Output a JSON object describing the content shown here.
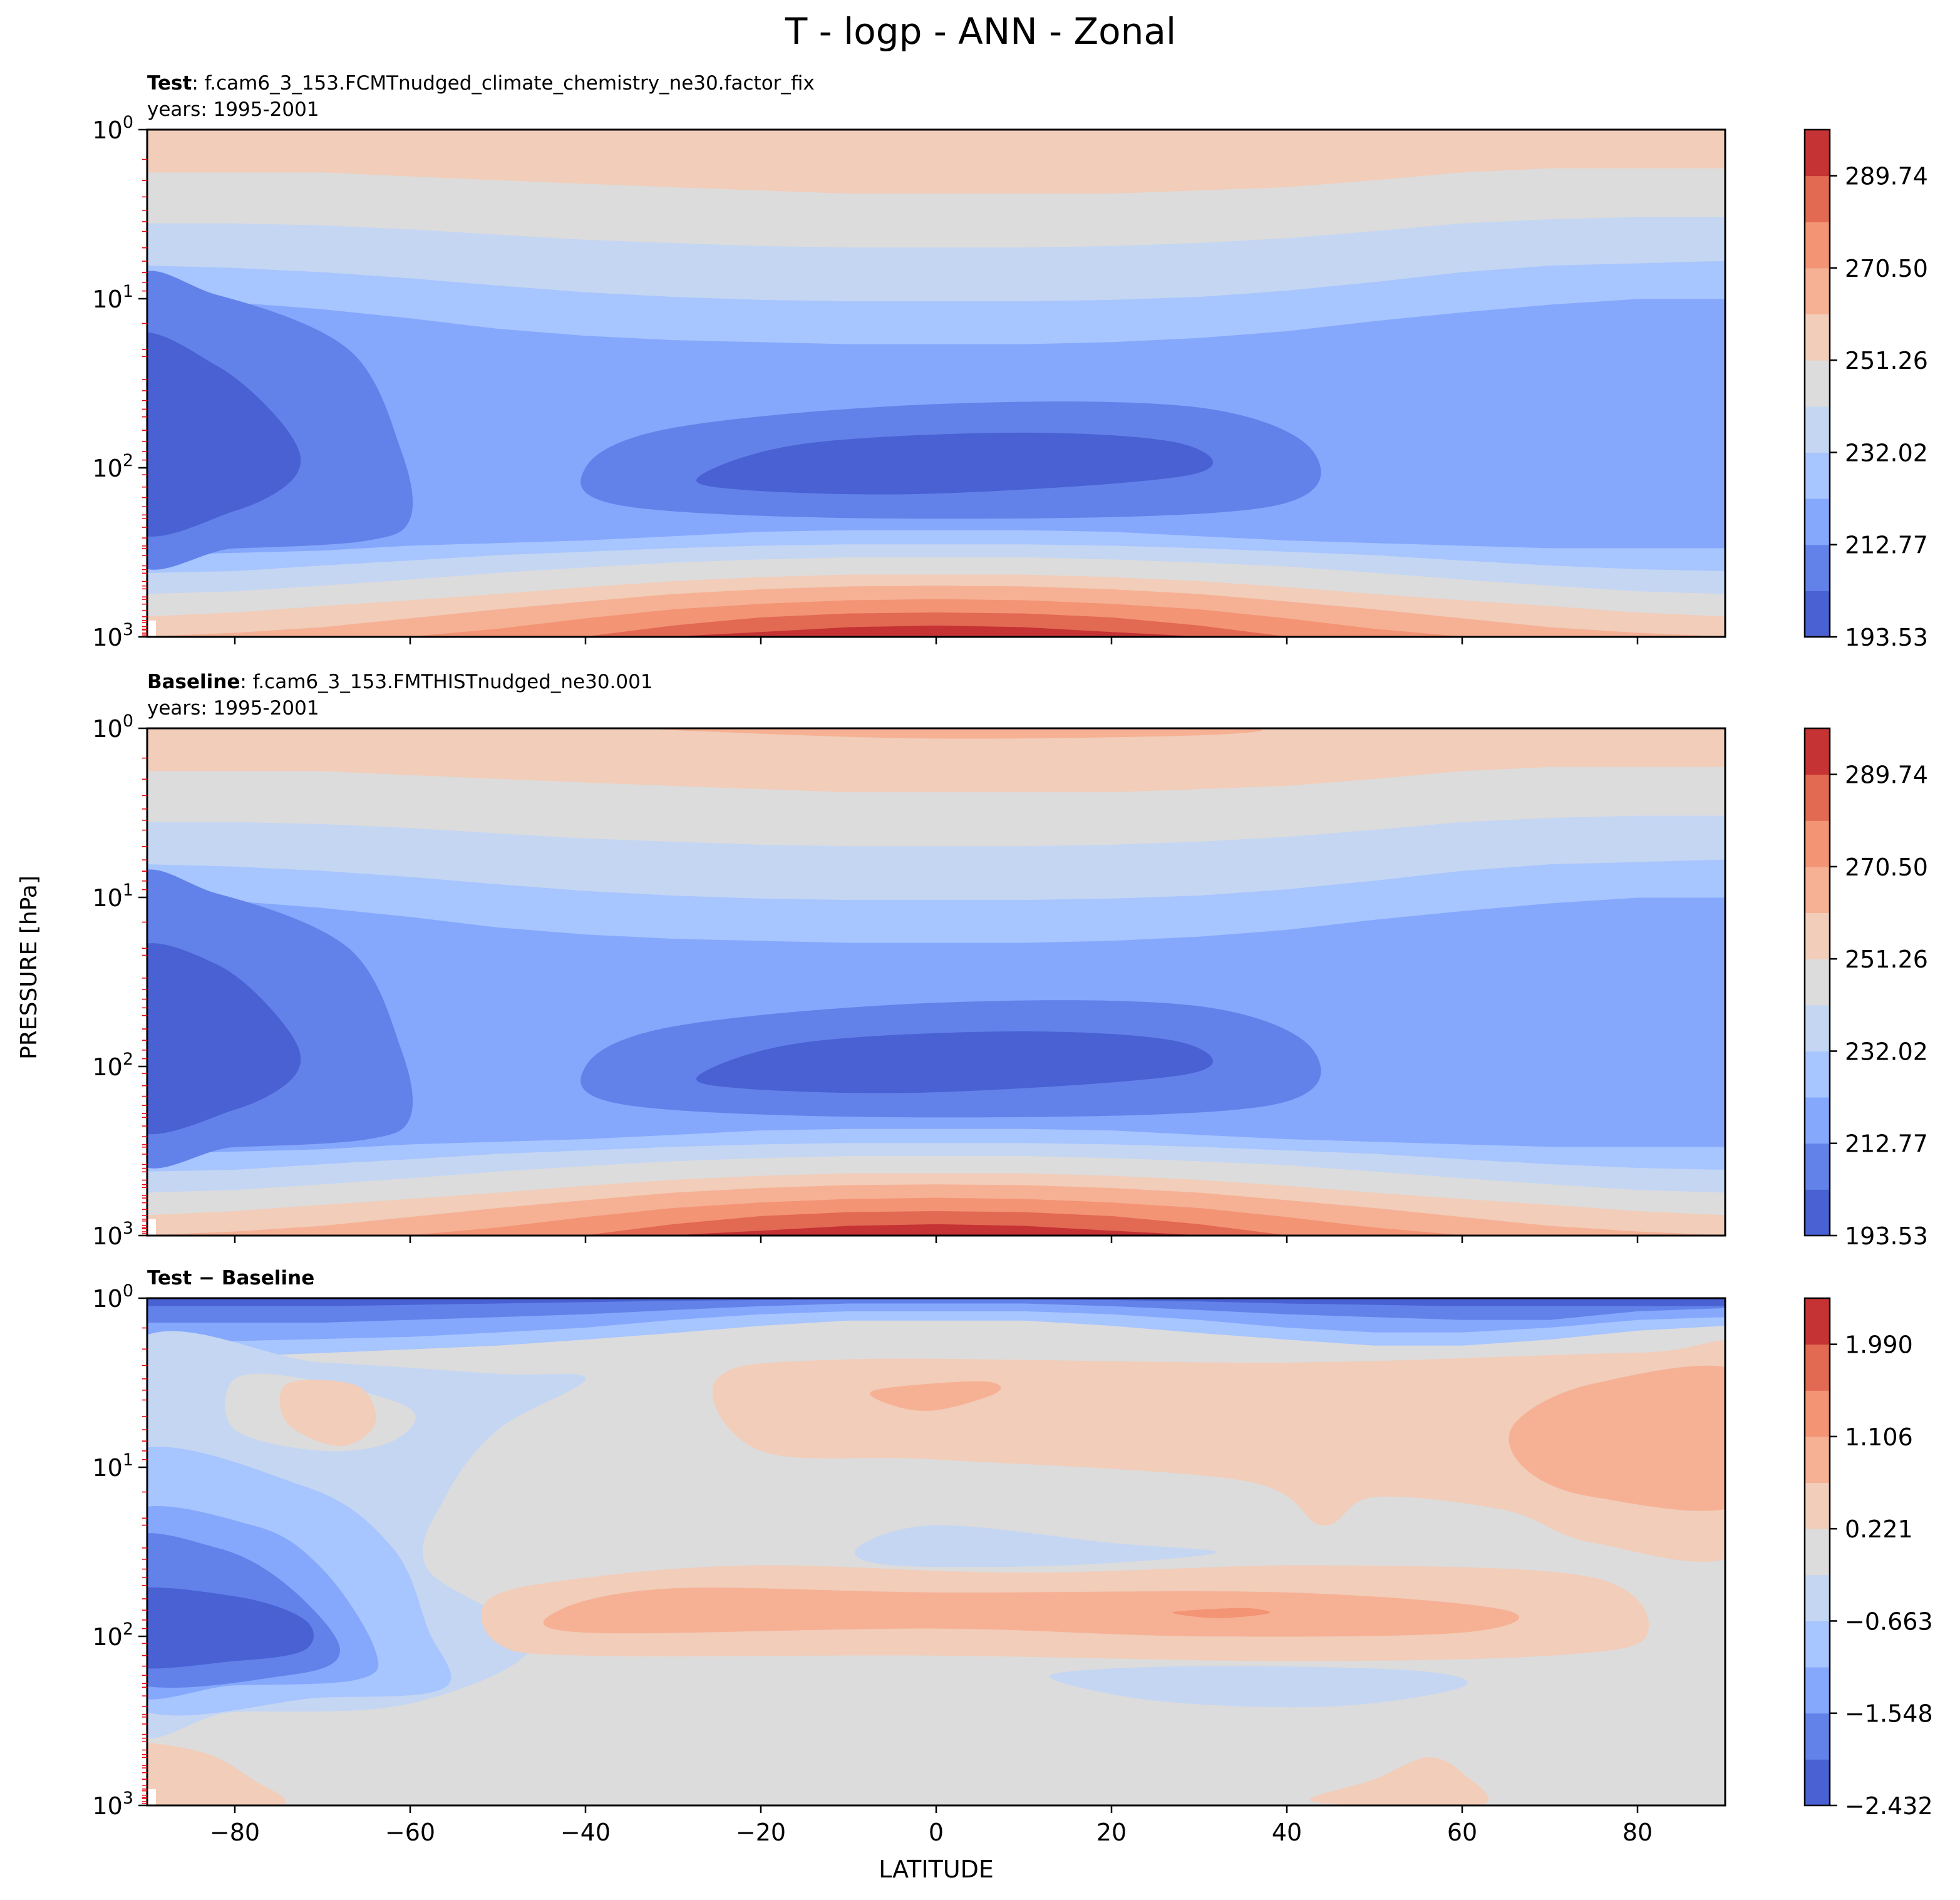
{
  "title": "T - logp - ANN - Zonal",
  "ylabel": "PRESSURE [hPa]",
  "xlabel": "LATITUDE",
  "colors": {
    "temp_levels": [
      "#4961d2",
      "#6282ea",
      "#85a8fc",
      "#a7c5fe",
      "#c5d6f2",
      "#dddcdc",
      "#f1cdba",
      "#f6b195",
      "#f39475",
      "#e26952",
      "#c53334"
    ],
    "diff_levels": [
      "#4961d2",
      "#6282ea",
      "#85a8fc",
      "#a7c5fe",
      "#c5d6f2",
      "#dddcdc",
      "#f1cdba",
      "#f6b195",
      "#f39475",
      "#e26952",
      "#c53334"
    ],
    "pressure_tick": "#e8000b"
  },
  "panels": [
    {
      "label_bold": "Test",
      "label_rest": ": f.cam6_3_153.FCMTnudged_climate_chemistry_ne30.factor_fix",
      "years": "years: 1995-2001"
    },
    {
      "label_bold": "Baseline",
      "label_rest": ": f.cam6_3_153.FMTHISTnudged_ne30.001",
      "years": "years: 1995-2001"
    },
    {
      "label_bold": "Test − Baseline",
      "label_rest": "",
      "years": ""
    }
  ],
  "chart_data": [
    {
      "type": "contour",
      "panel": "Test",
      "x": [
        -90,
        -80,
        -60,
        -40,
        -20,
        0,
        20,
        40,
        60,
        80,
        90
      ],
      "xticks": [
        -80,
        -60,
        -40,
        -20,
        0,
        20,
        40,
        60,
        80
      ],
      "xlim": [
        -90,
        90
      ],
      "yscale": "log",
      "ylim": [
        1000,
        1
      ],
      "yticks": [
        "10^0",
        "10^1",
        "10^2",
        "10^3"
      ],
      "colorbar_ticks": [
        "289.74",
        "270.50",
        "251.26",
        "232.02",
        "212.77",
        "193.53"
      ],
      "colorbar_range": [
        193.53,
        299.36
      ],
      "n_levels": 11,
      "field_note": "zonal-mean temperature, warmest (~300 K) near the surface at the equator, coldest (~195 K) near 70 hPa over the tropics and near 100 hPa over the south pole"
    },
    {
      "type": "contour",
      "panel": "Baseline",
      "xlim": [
        -90,
        90
      ],
      "yscale": "log",
      "ylim": [
        1000,
        1
      ],
      "colorbar_ticks": [
        "289.74",
        "270.50",
        "251.26",
        "232.02",
        "212.77",
        "193.53"
      ],
      "colorbar_range": [
        193.53,
        299.36
      ],
      "n_levels": 11
    },
    {
      "type": "contour",
      "panel": "Test - Baseline",
      "xlim": [
        -90,
        90
      ],
      "yscale": "log",
      "ylim": [
        1000,
        1
      ],
      "colorbar_ticks": [
        "1.990",
        "1.106",
        "0.221",
        "−0.663",
        "−1.548",
        "−2.432"
      ],
      "colorbar_range": [
        -2.432,
        2.432
      ],
      "n_levels": 11,
      "field_note": "difference field: cold anomaly (~-2.4 K) over the south pole 50-200 hPa, warm anomaly (~+1 K) in the tropical lower stratosphere near 50 hPa"
    }
  ]
}
